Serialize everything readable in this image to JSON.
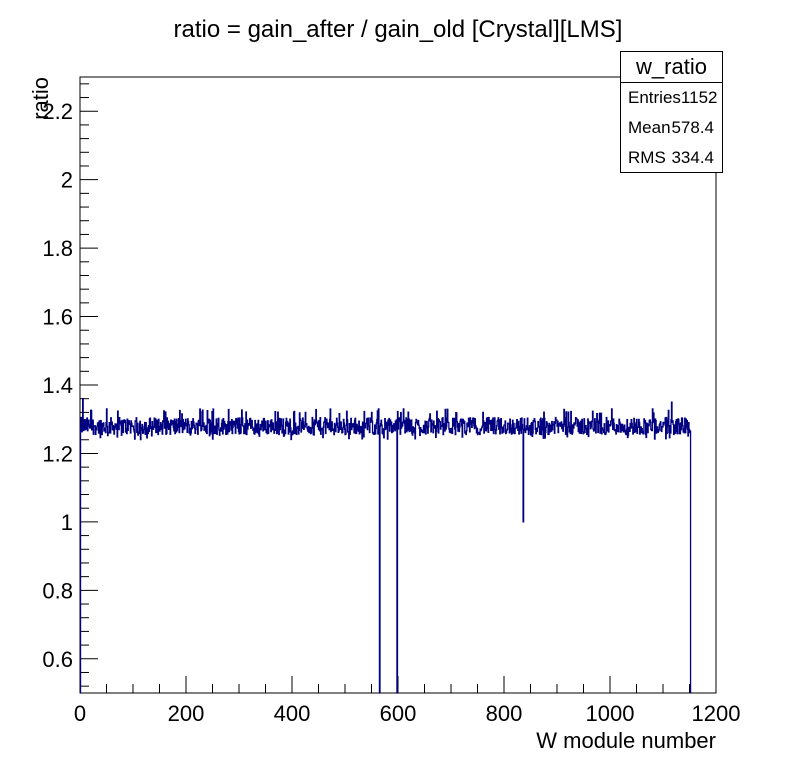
{
  "chart_data": {
    "type": "histogram",
    "title": "ratio = gain_after / gain_old [Crystal][LMS]",
    "xlabel": "W module number",
    "ylabel": "ratio",
    "xlim": [
      0,
      1200
    ],
    "ylim": [
      0.5,
      2.3
    ],
    "x_tick_labels": [
      "0",
      "200",
      "400",
      "600",
      "800",
      "1000",
      "1200"
    ],
    "y_tick_labels": [
      "0.6",
      "0.8",
      "1",
      "1.2",
      "1.4",
      "1.6",
      "1.8",
      "2",
      "2.2"
    ],
    "x_ticks": [
      0,
      200,
      400,
      600,
      800,
      1000,
      1200
    ],
    "y_ticks": [
      0.6,
      0.8,
      1.0,
      1.2,
      1.4,
      1.6,
      1.8,
      2.0,
      2.2
    ],
    "series": [
      {
        "color": "#000080",
        "baseline": 1.28,
        "band": [
          1.24,
          1.33
        ],
        "x_range": [
          0,
          1152
        ],
        "spikes": [
          {
            "x": 0,
            "y": 0.5
          },
          {
            "x": 565,
            "y": 0.5
          },
          {
            "x": 598,
            "y": 0.5
          },
          {
            "x": 836,
            "y": 1.0
          }
        ]
      }
    ],
    "stats": {
      "name": "w_ratio",
      "rows": [
        {
          "label": "Entries",
          "value": "1152"
        },
        {
          "label": "Mean",
          "value": "578.4"
        },
        {
          "label": "RMS",
          "value": "334.4"
        }
      ]
    }
  }
}
